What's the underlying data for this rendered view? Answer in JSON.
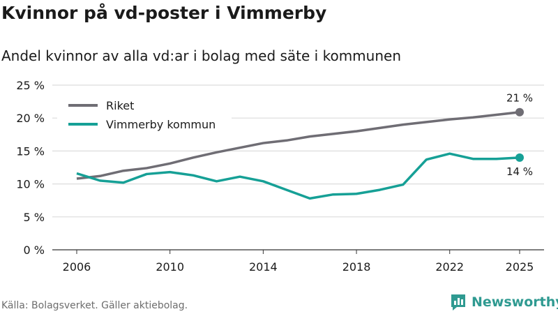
{
  "title": "Kvinnor på vd-poster i Vimmerby",
  "subtitle": "Andel kvinnor av alla vd:ar i bolag med säte i kommunen",
  "source": "Källa: Bolagsverket. Gäller aktiebolag.",
  "brand": "Newsworthy",
  "chart_data": {
    "type": "line",
    "title": "Kvinnor på vd-poster i Vimmerby",
    "ylabel": "",
    "xlabel": "",
    "ylim": [
      0,
      25
    ],
    "yticks": [
      0,
      5,
      10,
      15,
      20,
      25
    ],
    "ytick_labels": [
      "0 %",
      "5 %",
      "10 %",
      "15 %",
      "20 %",
      "25 %"
    ],
    "xticks": [
      2006,
      2010,
      2014,
      2018,
      2022,
      2025
    ],
    "xtick_labels": [
      "2006",
      "2010",
      "2014",
      "2018",
      "2022",
      "2025"
    ],
    "x": [
      2006,
      2007,
      2008,
      2009,
      2010,
      2011,
      2012,
      2013,
      2014,
      2015,
      2016,
      2017,
      2018,
      2019,
      2020,
      2021,
      2022,
      2023,
      2024,
      2025
    ],
    "grid": true,
    "legend": "top-left",
    "series": [
      {
        "name": "Riket",
        "color": "#6f6d74",
        "end_label": "21 %",
        "values": [
          10.8,
          11.2,
          12.0,
          12.4,
          13.1,
          14.0,
          14.8,
          15.5,
          16.2,
          16.6,
          17.2,
          17.6,
          18.0,
          18.5,
          19.0,
          19.4,
          19.8,
          20.1,
          20.5,
          20.9
        ]
      },
      {
        "name": "Vimmerby kommun",
        "color": "#16a096",
        "end_label": "14 %",
        "values": [
          11.6,
          10.5,
          10.2,
          11.5,
          11.8,
          11.3,
          10.4,
          11.1,
          10.4,
          9.1,
          7.8,
          8.4,
          8.5,
          9.1,
          9.9,
          13.7,
          14.6,
          13.8,
          13.8,
          14.0
        ]
      }
    ]
  }
}
